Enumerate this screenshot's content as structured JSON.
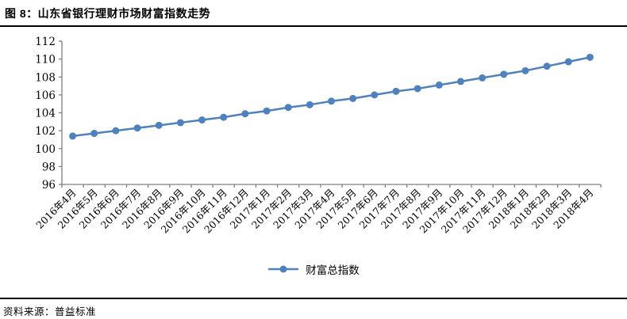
{
  "header": {
    "title": "图 8：山东省银行理财市场财富指数走势"
  },
  "legend": {
    "label": "财富总指数"
  },
  "footer": {
    "source_label": "资料来源：普益标准"
  },
  "colors": {
    "series": "#4F81BD",
    "axis": "#808080",
    "label_text": "#000000",
    "rule": "#000000",
    "background": "#FFFFFF"
  },
  "chart_data": {
    "type": "line",
    "title": "山东省银行理财市场财富指数走势",
    "xlabel": "",
    "ylabel": "",
    "ylim": [
      96,
      112
    ],
    "ytick_step": 2,
    "grid": false,
    "legend_position": "bottom",
    "marker": "circle",
    "categories": [
      "2016年4月",
      "2016年5月",
      "2016年6月",
      "2016年7月",
      "2016年8月",
      "2016年9月",
      "2016年10月",
      "2016年11月",
      "2016年12月",
      "2017年1月",
      "2017年2月",
      "2017年3月",
      "2017年4月",
      "2017年5月",
      "2017年6月",
      "2017年7月",
      "2017年8月",
      "2017年9月",
      "2017年10月",
      "2017年11月",
      "2017年12月",
      "2018年1月",
      "2018年2月",
      "2018年3月",
      "2018年4月"
    ],
    "series": [
      {
        "name": "财富总指数",
        "values": [
          101.4,
          101.7,
          102.0,
          102.3,
          102.6,
          102.9,
          103.2,
          103.5,
          103.9,
          104.2,
          104.6,
          104.9,
          105.3,
          105.6,
          106.0,
          106.4,
          106.7,
          107.1,
          107.5,
          107.9,
          108.3,
          108.7,
          109.2,
          109.7,
          110.2
        ]
      }
    ]
  }
}
